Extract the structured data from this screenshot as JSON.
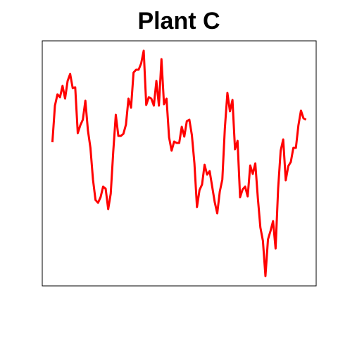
{
  "chart_data": {
    "type": "line",
    "title": "Plant C",
    "x": [
      1,
      2,
      3,
      4,
      5,
      6,
      7,
      8,
      9,
      10,
      11,
      12,
      13,
      14,
      15,
      16,
      17,
      18,
      19,
      20,
      21,
      22,
      23,
      24,
      25,
      26,
      27,
      28,
      29,
      30,
      31,
      32,
      33,
      34,
      35,
      36,
      37,
      38,
      39,
      40,
      41,
      42,
      43,
      44,
      45,
      46,
      47,
      48,
      49,
      50,
      51,
      52,
      53,
      54,
      55,
      56,
      57,
      58,
      59,
      60,
      61,
      62,
      63,
      64,
      65,
      66,
      67,
      68,
      69,
      70,
      71,
      72,
      73,
      74,
      75,
      76,
      77,
      78,
      79,
      80,
      81,
      82,
      83,
      84,
      85,
      86,
      87,
      88,
      89,
      90,
      91,
      92,
      93,
      94,
      95,
      96,
      97,
      98,
      99,
      100,
      101
    ],
    "series": [
      {
        "color": "#ff0000",
        "values": [
          204,
          256,
          272,
          268,
          284,
          266,
          291,
          301,
          281,
          282,
          217,
          228,
          236,
          263,
          221,
          196,
          151,
          122,
          118,
          126,
          141,
          138,
          109,
          131,
          191,
          243,
          213,
          213,
          216,
          229,
          266,
          253,
          303,
          307,
          307,
          316,
          334,
          257,
          268,
          266,
          256,
          291,
          256,
          322,
          258,
          266,
          211,
          192,
          205,
          203,
          203,
          226,
          212,
          234,
          236,
          214,
          174,
          112,
          136,
          144,
          172,
          158,
          163,
          141,
          119,
          103,
          134,
          151,
          224,
          274,
          248,
          264,
          194,
          206,
          126,
          137,
          141,
          127,
          171,
          159,
          174,
          125,
          83,
          64,
          14,
          66,
          78,
          92,
          53,
          138,
          192,
          208,
          150,
          170,
          176,
          196,
          196,
          228,
          249,
          238,
          236
        ]
      }
    ],
    "xlim": [
      -3,
      105
    ],
    "ylim": [
      0,
      348
    ]
  }
}
